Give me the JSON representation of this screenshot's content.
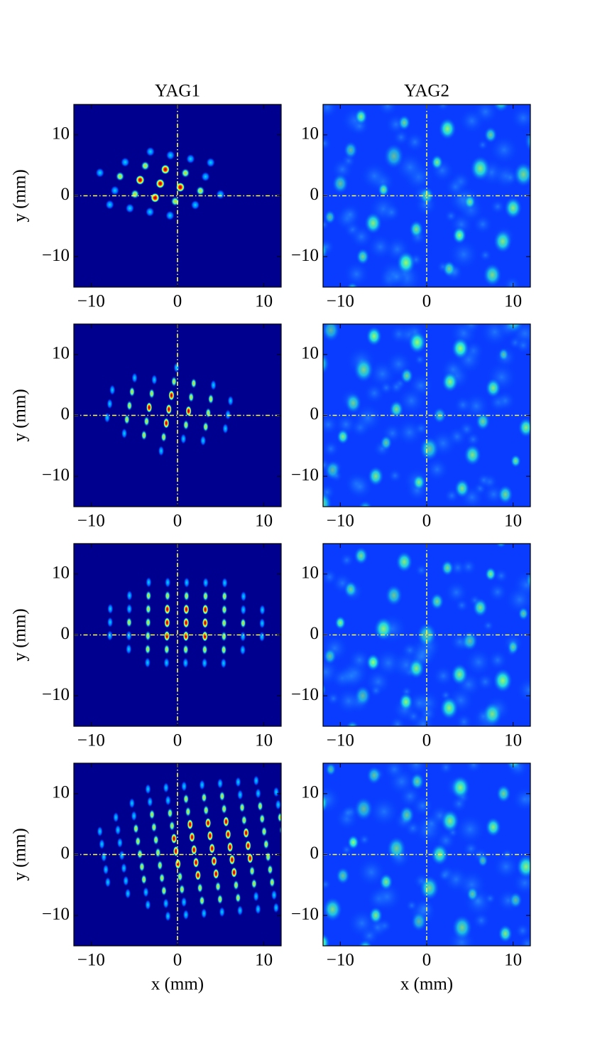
{
  "chart_data": [
    {
      "type": "heatmap",
      "title": "YAG1",
      "ylabel": "y (mm)",
      "xlim": [
        -12,
        12
      ],
      "ylim": [
        -15,
        15
      ],
      "xticks": [
        {
          "value": -10,
          "label": "−10"
        },
        0,
        10
      ],
      "yticks": [
        {
          "value": -10,
          "label": "−10"
        },
        0,
        10
      ],
      "crosshair": {
        "x": 0,
        "y": 0
      }
    },
    {
      "type": "heatmap",
      "title": "YAG2",
      "xlim": [
        -12,
        12
      ],
      "ylim": [
        -15,
        15
      ],
      "xticks": [
        {
          "value": -10,
          "label": "−10"
        },
        0,
        10
      ],
      "yticks": [
        {
          "value": -10,
          "label": "−10"
        },
        0,
        10
      ],
      "crosshair": {
        "x": 0,
        "y": 0
      }
    },
    {
      "type": "heatmap",
      "ylabel": "y (mm)",
      "xlim": [
        -12,
        12
      ],
      "ylim": [
        -15,
        15
      ],
      "xticks": [
        {
          "value": -10,
          "label": "−10"
        },
        0,
        10
      ],
      "yticks": [
        {
          "value": -10,
          "label": "−10"
        },
        0,
        10
      ],
      "crosshair": {
        "x": 0,
        "y": 0
      }
    },
    {
      "type": "heatmap",
      "xlim": [
        -12,
        12
      ],
      "ylim": [
        -15,
        15
      ],
      "xticks": [
        {
          "value": -10,
          "label": "−10"
        },
        0,
        10
      ],
      "yticks": [
        {
          "value": -10,
          "label": "−10"
        },
        0,
        10
      ],
      "crosshair": {
        "x": 0,
        "y": 0
      }
    },
    {
      "type": "heatmap",
      "ylabel": "y (mm)",
      "xlim": [
        -12,
        12
      ],
      "ylim": [
        -15,
        15
      ],
      "xticks": [
        {
          "value": -10,
          "label": "−10"
        },
        0,
        10
      ],
      "yticks": [
        {
          "value": -10,
          "label": "−10"
        },
        0,
        10
      ],
      "crosshair": {
        "x": 0,
        "y": 0
      }
    },
    {
      "type": "heatmap",
      "xlim": [
        -12,
        12
      ],
      "ylim": [
        -15,
        15
      ],
      "xticks": [
        {
          "value": -10,
          "label": "−10"
        },
        0,
        10
      ],
      "yticks": [
        {
          "value": -10,
          "label": "−10"
        },
        0,
        10
      ],
      "crosshair": {
        "x": 0,
        "y": 0
      }
    },
    {
      "type": "heatmap",
      "ylabel": "y (mm)",
      "xlabel": "x (mm)",
      "xlim": [
        -12,
        12
      ],
      "ylim": [
        -15,
        15
      ],
      "xticks": [
        {
          "value": -10,
          "label": "−10"
        },
        0,
        10
      ],
      "yticks": [
        {
          "value": -10,
          "label": "−10"
        },
        0,
        10
      ],
      "crosshair": {
        "x": 0,
        "y": 0
      }
    },
    {
      "type": "heatmap",
      "xlabel": "x (mm)",
      "xlim": [
        -12,
        12
      ],
      "ylim": [
        -15,
        15
      ],
      "xticks": [
        {
          "value": -10,
          "label": "−10"
        },
        0,
        10
      ],
      "yticks": [
        {
          "value": -10,
          "label": "−10"
        },
        0,
        10
      ],
      "crosshair": {
        "x": 0,
        "y": 0
      }
    }
  ]
}
